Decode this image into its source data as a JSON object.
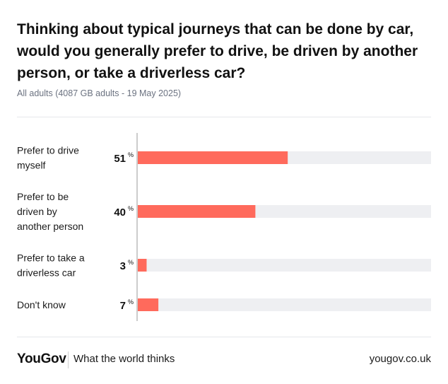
{
  "header": {
    "title": "Thinking about typical journeys that can be done by car, would you generally prefer to drive, be driven by another person, or take a driverless car?",
    "subtitle": "All adults (4087 GB adults - 19 May 2025)"
  },
  "chart_data": {
    "type": "bar",
    "orientation": "horizontal",
    "categories": [
      [
        "Prefer to drive",
        "myself"
      ],
      [
        "Prefer to be",
        "driven by",
        "another person"
      ],
      [
        "Prefer to take a",
        "driverless car"
      ],
      [
        "Don't know"
      ]
    ],
    "values": [
      51,
      40,
      3,
      7
    ],
    "unit": "%",
    "xlim": [
      0,
      100
    ],
    "bar_color": "#ff6a5c",
    "track_color": "#eeeff2"
  },
  "footer": {
    "logo": "YouGov",
    "tagline": "What the world thinks",
    "site": "yougov.co.uk"
  }
}
